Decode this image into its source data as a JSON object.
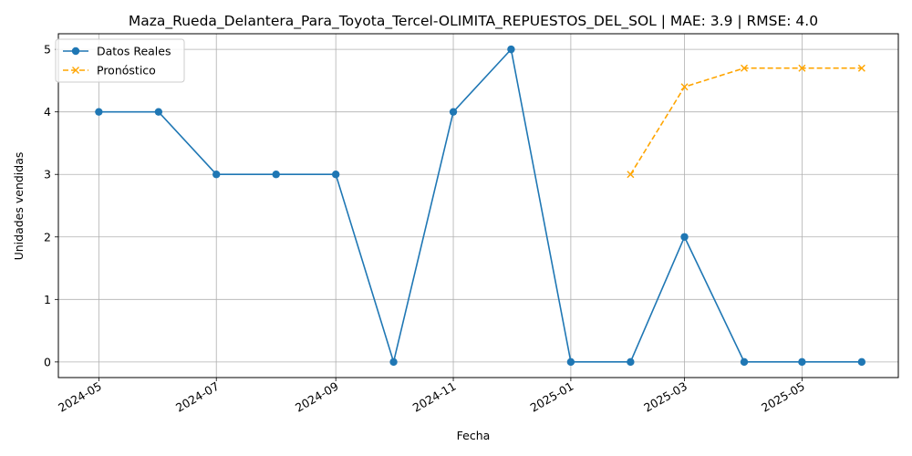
{
  "chart_data": {
    "type": "line",
    "title": "Maza_Rueda_Delantera_Para_Toyota_Tercel-OLIMITA_REPUESTOS_DEL_SOL | MAE: 3.9 | RMSE: 4.0",
    "xlabel": "Fecha",
    "ylabel": "Unidades vendidas",
    "ylim": [
      -0.25,
      5.25
    ],
    "y_ticks": [
      "0",
      "1",
      "2",
      "3",
      "4",
      "5"
    ],
    "x_ticks": [
      "2024-05",
      "2024-07",
      "2024-09",
      "2024-11",
      "2025-01",
      "2025-03",
      "2025-05"
    ],
    "x_tick_dates": [
      "2024-05-01",
      "2024-07-01",
      "2024-09-01",
      "2024-11-01",
      "2025-01-01",
      "2025-03-01",
      "2025-05-01"
    ],
    "xlim": [
      "2024-04-10",
      "2025-06-20"
    ],
    "grid": true,
    "legend_position": "top-left",
    "series": [
      {
        "name": "Datos Reales",
        "style": "solid",
        "marker": "circle",
        "color": "#1f77b4",
        "x": [
          "2024-05-01",
          "2024-06-01",
          "2024-07-01",
          "2024-08-01",
          "2024-09-01",
          "2024-10-01",
          "2024-11-01",
          "2024-12-01",
          "2025-01-01",
          "2025-02-01",
          "2025-03-01",
          "2025-04-01",
          "2025-05-01",
          "2025-06-01"
        ],
        "values": [
          4,
          4,
          3,
          3,
          3,
          0,
          4,
          5,
          0,
          0,
          2,
          0,
          0,
          0
        ]
      },
      {
        "name": "Pronóstico",
        "style": "dashed",
        "marker": "x",
        "color": "#ffa500",
        "x": [
          "2025-02-01",
          "2025-03-01",
          "2025-04-01",
          "2025-05-01",
          "2025-06-01"
        ],
        "values": [
          3.0,
          4.4,
          4.7,
          4.7,
          4.7
        ]
      }
    ]
  }
}
